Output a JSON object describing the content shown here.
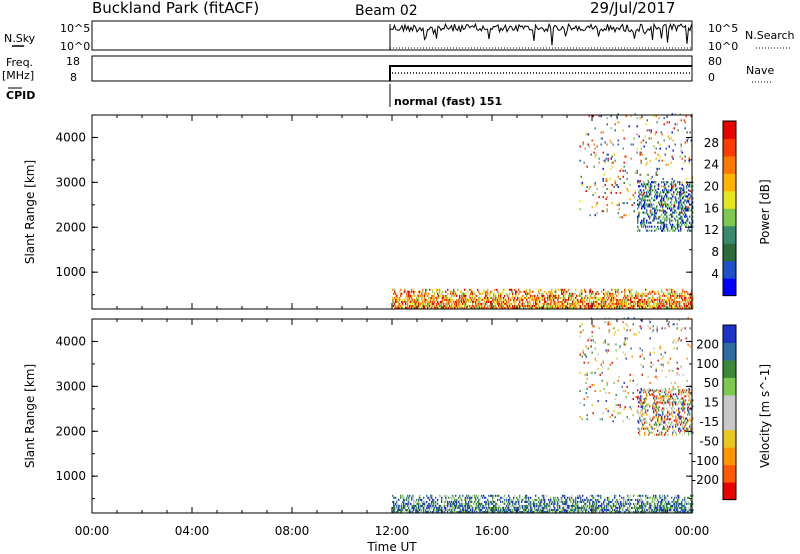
{
  "header": {
    "station": "Buckland Park (fitACF)",
    "beam": "Beam 02",
    "date": "29/Jul/2017"
  },
  "noise_panel": {
    "left_label": "N.Sky",
    "right_label": "N.Search",
    "left_ticks": [
      "10^5",
      "10^0"
    ],
    "right_ticks": [
      "10^5",
      "10^0"
    ]
  },
  "freq_panel": {
    "left_label_1": "Freq.",
    "left_label_2": "[MHz]",
    "right_label": "Nave",
    "left_ticks": [
      "18",
      "8"
    ],
    "right_ticks": [
      "80",
      "0"
    ]
  },
  "cpid": {
    "label": "CPID",
    "mode": "normal (fast) 151"
  },
  "chart_data": [
    {
      "type": "heatmap",
      "name": "power",
      "ylabel": "Slant Range [km]",
      "yticks": [
        1000,
        2000,
        3000,
        4000
      ],
      "ylim": [
        180,
        4500
      ],
      "xlim": [
        0,
        24
      ],
      "colorbar": {
        "label": "Power [dB]",
        "ticks": [
          "4",
          "8",
          "12",
          "16",
          "20",
          "24",
          "28"
        ],
        "colors": [
          "#0000ff",
          "#1e50c8",
          "#2e6b3a",
          "#3a8a6e",
          "#7cc850",
          "#e6e61e",
          "#ffb400",
          "#ff7800",
          "#ff3c00",
          "#e60000"
        ]
      },
      "regions": [
        {
          "t0": 12.0,
          "t1": 24.0,
          "r0": 180,
          "r1": 600,
          "density": "dense",
          "level": "high"
        },
        {
          "t0": 21.8,
          "t1": 24.0,
          "r0": 1900,
          "r1": 3000,
          "density": "medium",
          "level": "low"
        },
        {
          "t0": 19.5,
          "t1": 24.0,
          "r0": 2200,
          "r1": 4500,
          "density": "sparse",
          "level": "mixed"
        }
      ]
    },
    {
      "type": "heatmap",
      "name": "velocity",
      "ylabel": "Slant Range [km]",
      "yticks": [
        1000,
        2000,
        3000,
        4000
      ],
      "ylim": [
        180,
        4500
      ],
      "xlim": [
        0,
        24
      ],
      "xticks": [
        "00:00",
        "04:00",
        "08:00",
        "12:00",
        "16:00",
        "20:00",
        "00:00"
      ],
      "xlabel": "Time UT",
      "colorbar": {
        "label": "Velocity [m s^-1]",
        "ticks": [
          "200",
          "100",
          "50",
          "15",
          "-15",
          "-50",
          "-100",
          "-200"
        ],
        "colors": [
          "#1e32c8",
          "#2e6ba0",
          "#3a8a3a",
          "#7cc850",
          "#c8c8c8",
          "#c8c8c8",
          "#e6c81e",
          "#ff9600",
          "#ff5a00",
          "#e60000"
        ]
      },
      "regions": [
        {
          "t0": 12.0,
          "t1": 24.0,
          "r0": 180,
          "r1": 550,
          "density": "dense",
          "level": "low"
        },
        {
          "t0": 21.8,
          "t1": 24.0,
          "r0": 1900,
          "r1": 2900,
          "density": "medium",
          "level": "mixed"
        },
        {
          "t0": 19.5,
          "t1": 24.0,
          "r0": 2200,
          "r1": 4500,
          "density": "sparse",
          "level": "mixed"
        }
      ]
    }
  ]
}
